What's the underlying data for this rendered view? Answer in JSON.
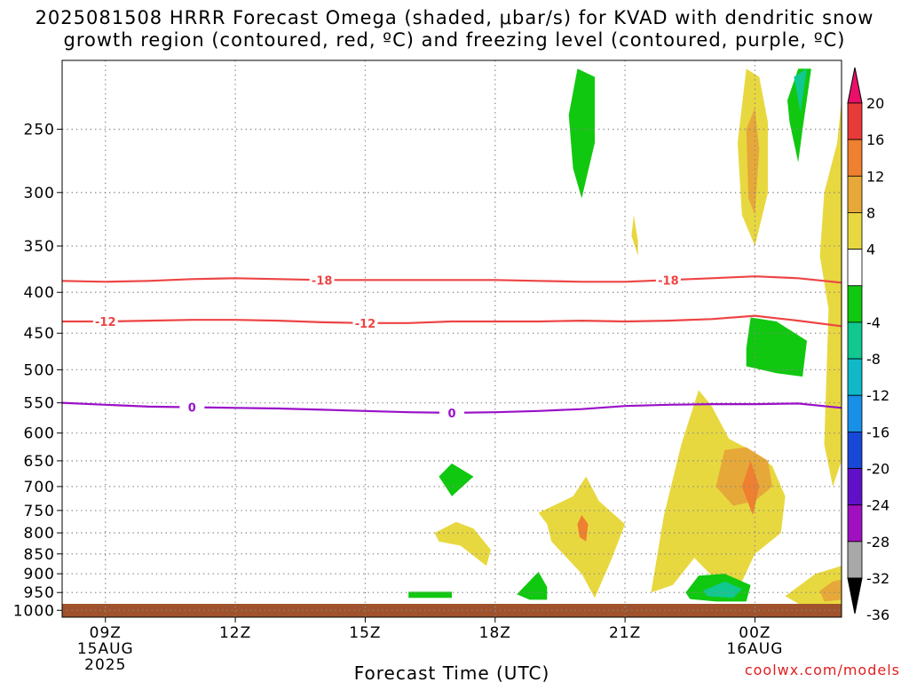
{
  "title_line1": "2025081508 HRRR Forecast Omega (shaded, μbar/s) for KVAD with dendritic snow",
  "title_line2": "growth region (contoured, red, ºC) and freezing level (contoured, purple, ºC)",
  "credit": "coolwx.com/models",
  "chart_data": {
    "type": "heatmap",
    "title": "2025081508 HRRR Forecast Omega (shaded, μbar/s) for KVAD with dendritic snow growth region (contoured, red, ºC) and freezing level (contoured, purple, ºC)",
    "xlabel": "Forecast Time (UTC)",
    "x_ticks": [
      {
        "hour": 9,
        "label": "09Z",
        "sub1": "15AUG",
        "sub2": "2025"
      },
      {
        "hour": 12,
        "label": "12Z",
        "sub1": "",
        "sub2": ""
      },
      {
        "hour": 15,
        "label": "15Z",
        "sub1": "",
        "sub2": ""
      },
      {
        "hour": 18,
        "label": "18Z",
        "sub1": "",
        "sub2": ""
      },
      {
        "hour": 21,
        "label": "21Z",
        "sub1": "",
        "sub2": ""
      },
      {
        "hour": 24,
        "label": "00Z",
        "sub1": "16AUG",
        "sub2": ""
      }
    ],
    "x_range_hours": [
      8,
      26
    ],
    "y_scale": "log-pressure",
    "y_range_hPa": [
      1020,
      205
    ],
    "y_ticks": [
      250,
      300,
      350,
      400,
      450,
      500,
      550,
      600,
      650,
      700,
      750,
      800,
      850,
      900,
      950,
      1000
    ],
    "grid": true,
    "colorbar": {
      "labels": [
        "20",
        "16",
        "12",
        "8",
        "4",
        "-4",
        "-8",
        "-12",
        "-16",
        "-20",
        "-24",
        "-28",
        "-32",
        "-36"
      ],
      "colors": [
        "#e8106a",
        "#e83a3a",
        "#ee8030",
        "#e6a838",
        "#e8d840",
        "#ffffff",
        "#10c810",
        "#10c890",
        "#10b8c8",
        "#1890e8",
        "#1848d8",
        "#6010c8",
        "#a010c0",
        "#a8a8a8",
        "#000000"
      ]
    },
    "contours": [
      {
        "name": "-18",
        "color": "#ee4444",
        "points": [
          [
            8,
            387
          ],
          [
            9,
            388
          ],
          [
            10,
            387
          ],
          [
            11,
            385
          ],
          [
            12,
            384
          ],
          [
            13,
            385
          ],
          [
            14,
            386
          ],
          [
            15,
            386
          ],
          [
            16,
            386
          ],
          [
            17,
            386
          ],
          [
            18,
            386
          ],
          [
            19,
            387
          ],
          [
            20,
            388
          ],
          [
            21,
            388
          ],
          [
            22,
            386
          ],
          [
            23,
            384
          ],
          [
            24,
            382
          ],
          [
            25,
            384
          ],
          [
            26,
            389
          ]
        ]
      },
      {
        "name": "-12",
        "color": "#ee4444",
        "points": [
          [
            8,
            435
          ],
          [
            9,
            435
          ],
          [
            10,
            434
          ],
          [
            11,
            433
          ],
          [
            12,
            433
          ],
          [
            13,
            434
          ],
          [
            14,
            436
          ],
          [
            15,
            437
          ],
          [
            16,
            437
          ],
          [
            17,
            435
          ],
          [
            18,
            435
          ],
          [
            19,
            435
          ],
          [
            20,
            434
          ],
          [
            21,
            435
          ],
          [
            22,
            434
          ],
          [
            23,
            432
          ],
          [
            24,
            428
          ],
          [
            25,
            434
          ],
          [
            26,
            441
          ]
        ]
      },
      {
        "name": "0",
        "color": "#9a10c8",
        "points": [
          [
            8,
            550
          ],
          [
            9,
            553
          ],
          [
            10,
            556
          ],
          [
            11,
            557
          ],
          [
            12,
            558
          ],
          [
            13,
            559
          ],
          [
            14,
            561
          ],
          [
            15,
            563
          ],
          [
            16,
            565
          ],
          [
            17,
            566
          ],
          [
            18,
            565
          ],
          [
            19,
            563
          ],
          [
            20,
            560
          ],
          [
            21,
            555
          ],
          [
            22,
            553
          ],
          [
            23,
            552
          ],
          [
            24,
            552
          ],
          [
            25,
            551
          ],
          [
            26,
            558
          ]
        ]
      }
    ],
    "omega_regions": [
      {
        "value": 6,
        "color": "#e8d840",
        "points": [
          [
            21.6,
            950
          ],
          [
            21.9,
            760
          ],
          [
            22.3,
            620
          ],
          [
            22.7,
            530
          ],
          [
            23.0,
            555
          ],
          [
            23.4,
            610
          ],
          [
            23.9,
            630
          ],
          [
            24.4,
            660
          ],
          [
            24.7,
            720
          ],
          [
            24.6,
            800
          ],
          [
            24.0,
            850
          ],
          [
            23.7,
            920
          ],
          [
            23.3,
            940
          ],
          [
            22.6,
            860
          ],
          [
            22.1,
            930
          ]
        ]
      },
      {
        "value": 6,
        "color": "#e8d840",
        "points": [
          [
            23.6,
            260
          ],
          [
            23.8,
            210
          ],
          [
            24.1,
            215
          ],
          [
            24.3,
            245
          ],
          [
            24.3,
            300
          ],
          [
            24.0,
            350
          ],
          [
            23.7,
            320
          ]
        ]
      },
      {
        "value": 6,
        "color": "#e8d840",
        "points": [
          [
            19.0,
            755
          ],
          [
            19.8,
            720
          ],
          [
            20.1,
            680
          ],
          [
            20.4,
            730
          ],
          [
            21.0,
            780
          ],
          [
            20.7,
            860
          ],
          [
            20.3,
            965
          ],
          [
            20.0,
            900
          ],
          [
            19.3,
            820
          ],
          [
            19.2,
            780
          ]
        ]
      },
      {
        "value": 6,
        "color": "#e8d840",
        "points": [
          [
            16.6,
            800
          ],
          [
            17.1,
            775
          ],
          [
            17.5,
            790
          ],
          [
            17.9,
            840
          ],
          [
            17.8,
            880
          ],
          [
            17.2,
            830
          ],
          [
            16.7,
            820
          ]
        ]
      },
      {
        "value": 6,
        "color": "#e8d840",
        "points": [
          [
            25.9,
            260
          ],
          [
            26.0,
            230
          ],
          [
            26.0,
            650
          ],
          [
            25.8,
            700
          ],
          [
            25.6,
            620
          ],
          [
            25.7,
            420
          ],
          [
            25.5,
            360
          ],
          [
            25.6,
            300
          ]
        ]
      },
      {
        "value": 6,
        "color": "#e8d840",
        "points": [
          [
            24.7,
            960
          ],
          [
            25.4,
            900
          ],
          [
            26.0,
            880
          ],
          [
            26.0,
            990
          ],
          [
            25.2,
            995
          ]
        ]
      },
      {
        "value": 6,
        "color": "#e8d840",
        "points": [
          [
            21.2,
            320
          ],
          [
            21.3,
            345
          ],
          [
            21.3,
            360
          ],
          [
            21.15,
            340
          ]
        ]
      },
      {
        "value": 10,
        "color": "#e6a838",
        "points": [
          [
            23.1,
            700
          ],
          [
            23.3,
            630
          ],
          [
            23.8,
            625
          ],
          [
            24.3,
            650
          ],
          [
            24.4,
            700
          ],
          [
            24.0,
            730
          ],
          [
            23.5,
            740
          ]
        ]
      },
      {
        "value": 10,
        "color": "#e6a838",
        "points": [
          [
            23.8,
            250
          ],
          [
            24.0,
            235
          ],
          [
            24.1,
            265
          ],
          [
            24.0,
            320
          ],
          [
            23.85,
            305
          ]
        ]
      },
      {
        "value": 10,
        "color": "#e6a838",
        "points": [
          [
            25.5,
            945
          ],
          [
            25.8,
            920
          ],
          [
            26.0,
            915
          ],
          [
            26.0,
            970
          ],
          [
            25.6,
            975
          ]
        ]
      },
      {
        "value": 14,
        "color": "#ee8030",
        "points": [
          [
            23.7,
            700
          ],
          [
            23.9,
            650
          ],
          [
            24.1,
            700
          ],
          [
            23.95,
            760
          ]
        ]
      },
      {
        "value": 14,
        "color": "#ee8030",
        "points": [
          [
            19.9,
            780
          ],
          [
            20.0,
            760
          ],
          [
            20.15,
            780
          ],
          [
            20.1,
            820
          ],
          [
            19.95,
            810
          ]
        ]
      },
      {
        "value": -6,
        "color": "#10c810",
        "points": [
          [
            19.7,
            240
          ],
          [
            19.9,
            210
          ],
          [
            20.3,
            215
          ],
          [
            20.3,
            260
          ],
          [
            20.0,
            305
          ],
          [
            19.8,
            280
          ]
        ]
      },
      {
        "value": -6,
        "color": "#10c810",
        "points": [
          [
            23.8,
            470
          ],
          [
            23.9,
            430
          ],
          [
            24.5,
            435
          ],
          [
            25.2,
            460
          ],
          [
            25.1,
            510
          ],
          [
            24.5,
            505
          ],
          [
            23.8,
            495
          ]
        ]
      },
      {
        "value": -6,
        "color": "#10c810",
        "points": [
          [
            16.7,
            680
          ],
          [
            17.0,
            655
          ],
          [
            17.5,
            680
          ],
          [
            17.0,
            720
          ]
        ]
      },
      {
        "value": -6,
        "color": "#10c810",
        "points": [
          [
            22.4,
            950
          ],
          [
            22.7,
            905
          ],
          [
            23.3,
            900
          ],
          [
            23.9,
            930
          ],
          [
            23.8,
            975
          ],
          [
            23.1,
            975
          ],
          [
            22.5,
            968
          ]
        ]
      },
      {
        "value": -6,
        "color": "#10c810",
        "points": [
          [
            18.5,
            955
          ],
          [
            19.0,
            895
          ],
          [
            19.2,
            935
          ],
          [
            19.2,
            970
          ],
          [
            18.8,
            970
          ]
        ]
      },
      {
        "value": -6,
        "color": "#10c810",
        "points": [
          [
            16.0,
            948
          ],
          [
            17.0,
            948
          ],
          [
            17.0,
            965
          ],
          [
            16.0,
            965
          ]
        ]
      },
      {
        "value": -6,
        "color": "#10c810",
        "points": [
          [
            24.75,
            230
          ],
          [
            25.0,
            210
          ],
          [
            25.3,
            210
          ],
          [
            25.1,
            250
          ],
          [
            25.0,
            275
          ],
          [
            24.8,
            245
          ]
        ]
      },
      {
        "value": -10,
        "color": "#10c890",
        "points": [
          [
            22.8,
            945
          ],
          [
            23.3,
            920
          ],
          [
            23.7,
            940
          ],
          [
            23.5,
            965
          ],
          [
            22.9,
            960
          ]
        ]
      },
      {
        "value": -10,
        "color": "#10c890",
        "points": [
          [
            24.9,
            215
          ],
          [
            25.2,
            210
          ],
          [
            25.05,
            238
          ]
        ]
      }
    ]
  }
}
